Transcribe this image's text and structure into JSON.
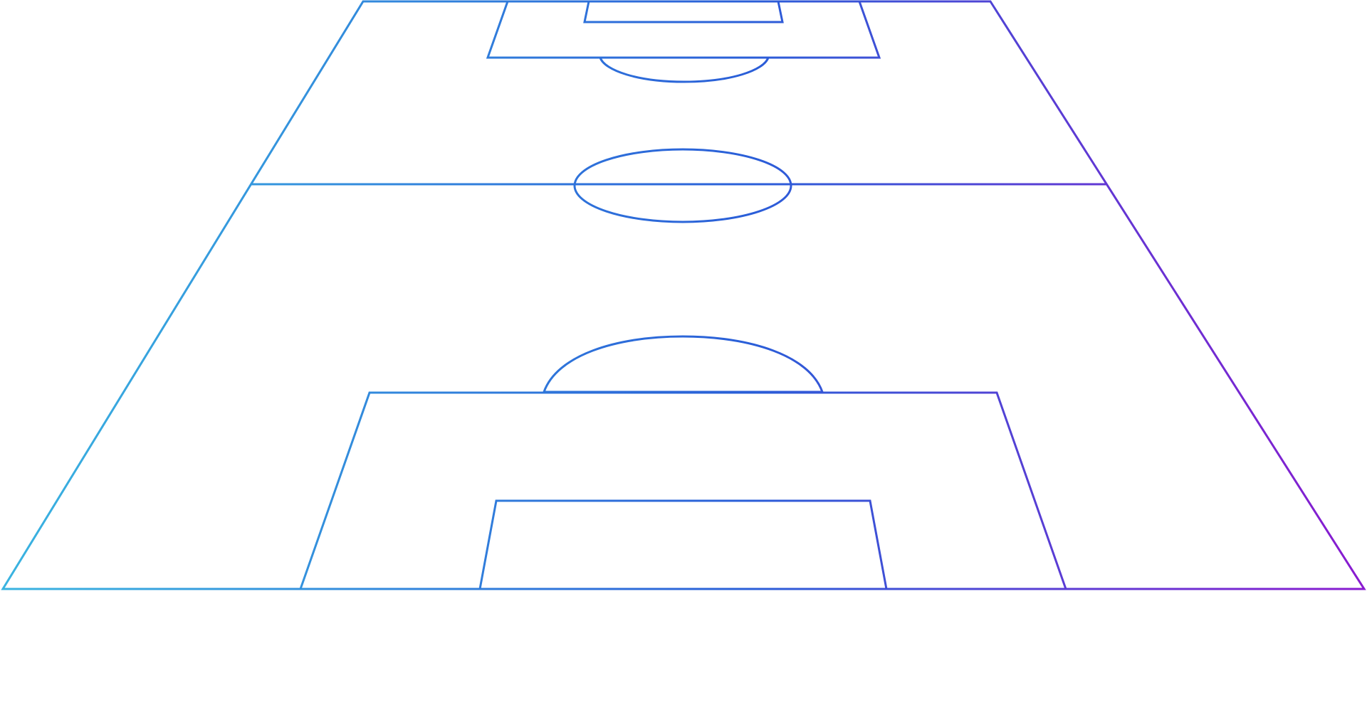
{
  "diagram": {
    "kind": "football-pitch-perspective",
    "orientation": "half-field-plus-far-box",
    "colors": {
      "gradient_start": "#3ab4e0",
      "gradient_mid": "#2a5ed8",
      "gradient_end": "#8a1ad0",
      "background": "#ffffff"
    },
    "markings": [
      "pitch-outline",
      "halfway-line",
      "center-circle",
      "far-penalty-box",
      "far-goal-box",
      "far-penalty-arc",
      "near-penalty-box",
      "near-goal-box",
      "near-penalty-arc"
    ]
  }
}
